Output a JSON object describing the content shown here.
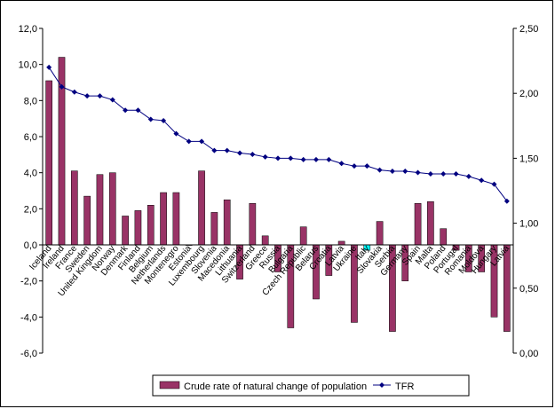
{
  "chart_data": {
    "type": "bar",
    "categories": [
      "Iceland",
      "Ireland",
      "France",
      "Sweden",
      "United Kingdom",
      "Norway",
      "Denmark",
      "Finland",
      "Belgium",
      "Netherlands",
      "Montenegro",
      "Estonia",
      "Luxembourg",
      "Slovenia",
      "Macedonia",
      "Lithuania",
      "Switzerland",
      "Greece",
      "Russia",
      "Bulgaria",
      "Czech Republic",
      "Belarus",
      "Croatia",
      "Latvia",
      "Ukraine",
      "Italy",
      "Slovakia",
      "Serbia",
      "Germany",
      "Spain",
      "Malta",
      "Poland",
      "Portugal",
      "Romania",
      "Moldova",
      "Hungary",
      "Latvia"
    ],
    "series": [
      {
        "name": "Crude rate of natural change of population",
        "axis": "left",
        "color": "#993366",
        "highlight_index": 25,
        "highlight_color": "#00ffff",
        "values": [
          9.1,
          10.4,
          4.1,
          2.7,
          3.9,
          4.0,
          1.6,
          1.9,
          2.2,
          2.9,
          2.9,
          0.0,
          4.1,
          1.8,
          2.5,
          -1.9,
          2.3,
          0.5,
          -1.5,
          -4.6,
          1.0,
          -3.0,
          -1.7,
          0.2,
          -4.3,
          -0.3,
          1.3,
          -4.8,
          -2.0,
          2.3,
          2.4,
          0.9,
          -0.3,
          -1.5,
          -1.5,
          -4.0,
          -4.8
        ]
      },
      {
        "name": "TFR",
        "axis": "right",
        "color": "#000080",
        "values": [
          2.2,
          2.05,
          2.01,
          1.98,
          1.98,
          1.95,
          1.87,
          1.87,
          1.8,
          1.79,
          1.69,
          1.63,
          1.63,
          1.56,
          1.56,
          1.54,
          1.53,
          1.51,
          1.5,
          1.5,
          1.49,
          1.49,
          1.49,
          1.46,
          1.44,
          1.44,
          1.41,
          1.4,
          1.4,
          1.39,
          1.38,
          1.38,
          1.38,
          1.36,
          1.33,
          1.3,
          1.17
        ]
      }
    ],
    "y_left": {
      "min": -6.0,
      "max": 12.0,
      "ticks": [
        "-6,0",
        "-4,0",
        "-2,0",
        "0,0",
        "2,0",
        "4,0",
        "6,0",
        "8,0",
        "10,0",
        "12,0"
      ]
    },
    "y_right": {
      "min": 0.0,
      "max": 2.5,
      "ticks": [
        "0,00",
        "0,50",
        "1,00",
        "1,50",
        "2,00",
        "2,50"
      ]
    },
    "legend": {
      "position": "bottom",
      "items": [
        "Crude rate of natural change of population",
        "TFR"
      ]
    }
  }
}
